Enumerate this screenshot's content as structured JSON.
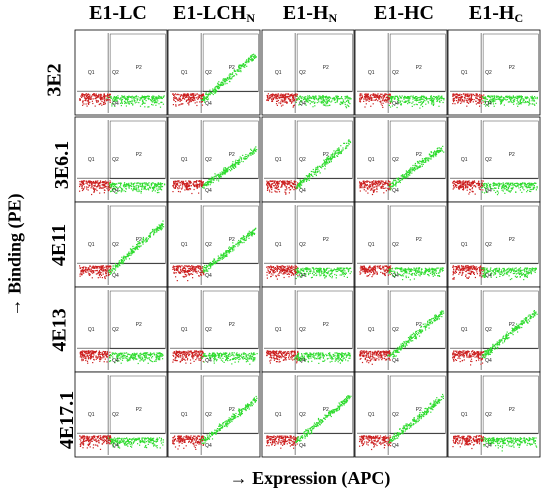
{
  "columns": [
    {
      "main": "E1-LC",
      "sub": ""
    },
    {
      "main": "E1-LCH",
      "sub": "N"
    },
    {
      "main": "E1-H",
      "sub": "N"
    },
    {
      "main": "E1-HC",
      "sub": ""
    },
    {
      "main": "E1-H",
      "sub": "C"
    }
  ],
  "rows": [
    "3E2",
    "3E6.1",
    "4E11",
    "4E13",
    "4E17.1"
  ],
  "y_axis_title": "→ Binding (PE)",
  "x_axis_title": "→ Expression (APC)",
  "gate_labels": {
    "q1": "Q1",
    "q2": "Q2",
    "q4": "Q4",
    "p2": "P2"
  },
  "colors": {
    "negative": "#cc1f1f",
    "positive": "#2edb2e",
    "grid": "#000000"
  },
  "binding_level": [
    [
      0.0,
      0.85,
      0.0,
      0.05,
      0.0
    ],
    [
      0.05,
      0.7,
      0.85,
      0.75,
      0.0
    ],
    [
      0.9,
      0.8,
      0.0,
      0.0,
      0.0
    ],
    [
      0.0,
      0.0,
      0.0,
      0.85,
      0.85
    ],
    [
      0.0,
      0.8,
      0.85,
      0.85,
      0.0
    ]
  ]
}
